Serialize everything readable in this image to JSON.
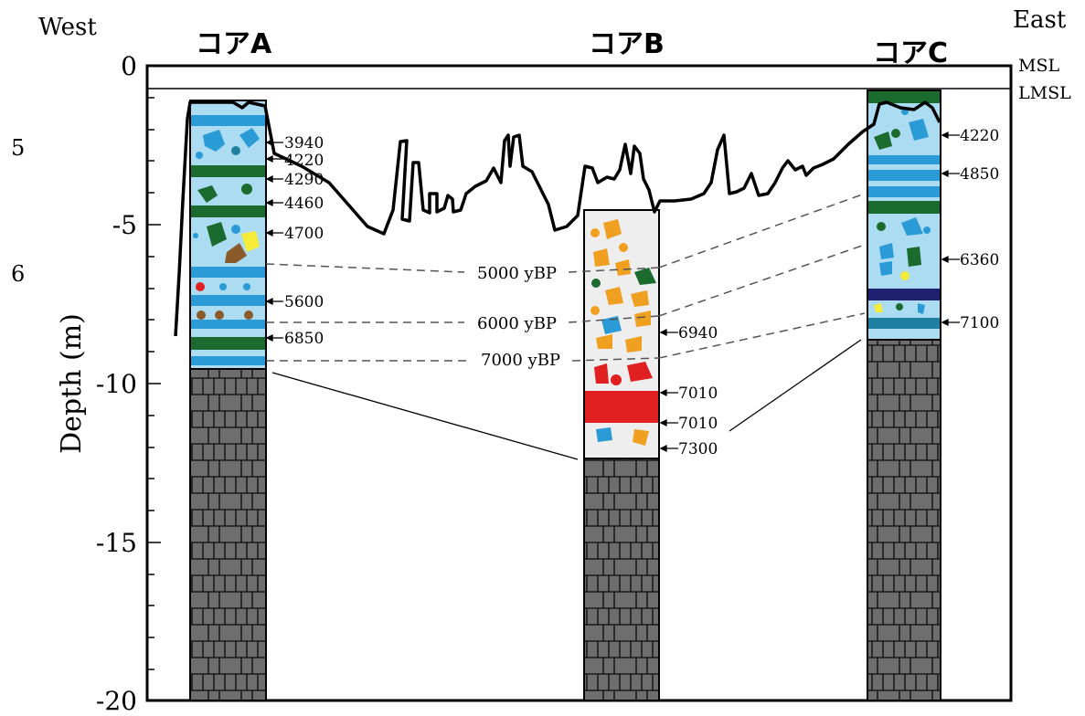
{
  "directions": {
    "west": "West",
    "east": "East"
  },
  "cores": {
    "a": {
      "label": "コアA"
    },
    "b": {
      "label": "コアB"
    },
    "c": {
      "label": "コアC"
    }
  },
  "sea_levels": {
    "msl": "MSL",
    "lmsl": "LMSL"
  },
  "axis": {
    "ylabel": "Depth (m)",
    "ticks": [
      "0",
      "-5",
      "-10",
      "-15",
      "-20"
    ]
  },
  "left_marks": [
    "5",
    "6"
  ],
  "core_a_ages": [
    "3940",
    "4220",
    "4290",
    "4460",
    "4700",
    "5600",
    "6850"
  ],
  "core_b_ages": [
    "6940",
    "7010",
    "7010",
    "7300"
  ],
  "core_c_ages": [
    "4220",
    "4850",
    "6360",
    "7100"
  ],
  "isochrons": [
    "5000 yBP",
    "6000 yBP",
    "7000 yBP"
  ],
  "colors": {
    "light_blue": "#abdcf2",
    "blue_band": "#2a9bd6",
    "dark_green": "#1b6b2e",
    "orange": "#f0a020",
    "red": "#e02020",
    "yellow": "#f5ec3a",
    "brown": "#8a5a2a",
    "navy": "#202070",
    "teal": "#1f7fa0",
    "bedrock": "#6e6e6e",
    "sand_gray": "#eeeeee"
  }
}
